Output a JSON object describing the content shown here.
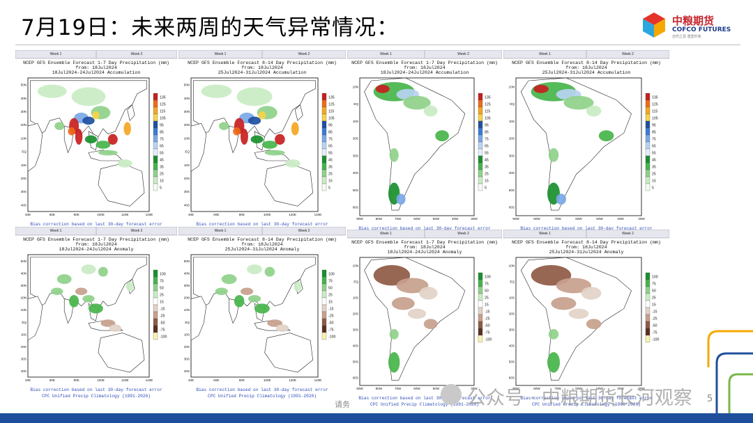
{
  "slide": {
    "title": "7月19日：未来两周的天气异常情况：",
    "page_number": "5",
    "footnote": "请务",
    "watermark": "公众号 · 中粮期货长河观察"
  },
  "logo": {
    "cn": "中粮期货",
    "en": "COFCO FUTURES",
    "sub": "自然之源  重塑你我",
    "colors": [
      "#e63329",
      "#f6a800",
      "#2aa7df",
      "#1a3a8a"
    ]
  },
  "week_header": {
    "week1": "Week 1",
    "week2": "Week 2"
  },
  "precip_scale": {
    "levels": [
      "135",
      "125",
      "115",
      "105",
      "95",
      "85",
      "75",
      "65",
      "55",
      "45",
      "35",
      "25",
      "15",
      "5"
    ],
    "colors": [
      "#c81e1e",
      "#ee6a1a",
      "#f5a623",
      "#f7d24a",
      "#1e4fa0",
      "#3a7bd5",
      "#7aa8e6",
      "#b8d2f2",
      "#e4eefa",
      "#1a8f2e",
      "#46b44a",
      "#8fd18a",
      "#c9ecc3",
      "#f4fbf2"
    ]
  },
  "anomaly_scale": {
    "levels": [
      "100",
      "75",
      "50",
      "25",
      "15",
      "-15",
      "-25",
      "-50",
      "-75",
      "-100"
    ],
    "colors": [
      "#1a8f2e",
      "#46b44a",
      "#8fd18a",
      "#c9ecc3",
      "#ffffff",
      "#e3d2c8",
      "#c7a08c",
      "#8e5a45",
      "#5a3022",
      "#f7f2b0"
    ]
  },
  "panels": [
    {
      "id": "asia-accum-w1",
      "title": "NCEP GFS Ensemble Forecast 1-7 Day Precipitation (mm)",
      "from": "from: 18Jul2024",
      "period": "18Jul2024-24Jul2024 Accumulation",
      "footer1": "Bias correction based on last 30-day forecast error",
      "footer2": "",
      "lat_labels": [
        "50N",
        "40N",
        "30N",
        "20N",
        "10N",
        "EQ",
        "10S",
        "20S",
        "30S",
        "40S"
      ],
      "lon_labels": [
        "40E",
        "60E",
        "80E",
        "100E",
        "120E",
        "140E"
      ],
      "region": "asia",
      "kind": "accum"
    },
    {
      "id": "asia-accum-w2",
      "title": "NCEP GFS Ensemble Forecast 8-14 Day Precipitation (mm)",
      "from": "from: 18Jul2024",
      "period": "25Jul2024-31Jul2024 Accumulation",
      "footer1": "Bias correction based on last 30-day forecast error",
      "footer2": "",
      "lat_labels": [
        "50N",
        "40N",
        "30N",
        "20N",
        "10N",
        "EQ",
        "10S",
        "20S",
        "30S",
        "40S"
      ],
      "lon_labels": [
        "40E",
        "60E",
        "80E",
        "100E",
        "120E",
        "140E"
      ],
      "region": "asia",
      "kind": "accum"
    },
    {
      "id": "sa-accum-w1",
      "title": "NCEP GFS Ensemble Forecast 1-7 Day Precipitation (mm)",
      "from": "from: 18Jul2024",
      "period": "18Jul2024-24Jul2024 Accumulation",
      "footer1": "Bias correction based on last 30-day forecast error",
      "footer2": "",
      "lat_labels": [
        "10N",
        "EQ",
        "10S",
        "20S",
        "30S",
        "40S",
        "50S",
        "60S"
      ],
      "lon_labels": [
        "90W",
        "80W",
        "70W",
        "60W",
        "50W",
        "40W",
        "30W"
      ],
      "region": "sa",
      "kind": "accum"
    },
    {
      "id": "sa-accum-w2",
      "title": "NCEP GFS Ensemble Forecast 8-14 Day Precipitation (mm)",
      "from": "from: 18Jul2024",
      "period": "25Jul2024-31Jul2024 Accumulation",
      "footer1": "Bias correction based on last 30-day forecast error",
      "footer2": "",
      "lat_labels": [
        "10N",
        "EQ",
        "10S",
        "20S",
        "30S",
        "40S",
        "50S",
        "60S"
      ],
      "lon_labels": [
        "90W",
        "80W",
        "70W",
        "60W",
        "50W",
        "40W",
        "30W"
      ],
      "region": "sa",
      "kind": "accum"
    },
    {
      "id": "asia-anom-w1",
      "title": "NCEP GFS Ensemble Forecast 1-7 Day Precipitation (mm)",
      "from": "from: 18Jul2024",
      "period": "18Jul2024-24Jul2024 Anomaly",
      "footer1": "Bias correction based on last 30-day forecast error",
      "footer2": "CPC Unified Precip Climatology (1991-2020)",
      "lat_labels": [
        "50N",
        "40N",
        "30N",
        "20N",
        "10N",
        "EQ",
        "10S",
        "20S",
        "30S",
        "40S"
      ],
      "lon_labels": [
        "40E",
        "60E",
        "80E",
        "100E",
        "120E",
        "140E"
      ],
      "region": "asia",
      "kind": "anom"
    },
    {
      "id": "asia-anom-w2",
      "title": "NCEP GFS Ensemble Forecast 8-14 Day Precipitation (mm)",
      "from": "from: 18Jul2024",
      "period": "25Jul2024-31Jul2024 Anomaly",
      "footer1": "Bias correction based on last 30-day forecast error",
      "footer2": "CPC Unified Precip Climatology (1991-2020)",
      "lat_labels": [
        "50N",
        "40N",
        "30N",
        "20N",
        "10N",
        "EQ",
        "10S",
        "20S",
        "30S",
        "40S"
      ],
      "lon_labels": [
        "40E",
        "60E",
        "80E",
        "100E",
        "120E",
        "140E"
      ],
      "region": "asia",
      "kind": "anom"
    },
    {
      "id": "sa-anom-w1",
      "title": "NCEP GFS Ensemble Forecast 1-7 Day Precipitation (mm)",
      "from": "from: 18Jul2024",
      "period": "18Jul2024-24Jul2024 Anomaly",
      "footer1": "Bias correction based on last 30-day forecast error",
      "footer2": "CPC Unified Precip Climatology (1991-2020)",
      "lat_labels": [
        "10N",
        "EQ",
        "10S",
        "20S",
        "30S",
        "40S",
        "50S",
        "60S"
      ],
      "lon_labels": [
        "90W",
        "80W",
        "70W",
        "60W",
        "50W",
        "40W",
        "30W"
      ],
      "region": "sa",
      "kind": "anom"
    },
    {
      "id": "sa-anom-w2",
      "title": "NCEP GFS Ensemble Forecast 8-14 Day Precipitation (mm)",
      "from": "from: 18Jul2024",
      "period": "25Jul2024-31Jul2024 Anomaly",
      "footer1": "Bias correction based on last 30-day forecast error",
      "footer2": "CPC Unified Precip Climatology (1991-2020)",
      "lat_labels": [
        "10N",
        "EQ",
        "10S",
        "20S",
        "30S",
        "40S",
        "50S",
        "60S"
      ],
      "lon_labels": [
        "90W",
        "80W",
        "70W",
        "60W",
        "50W",
        "40W",
        "30W"
      ],
      "region": "sa",
      "kind": "anom"
    }
  ]
}
